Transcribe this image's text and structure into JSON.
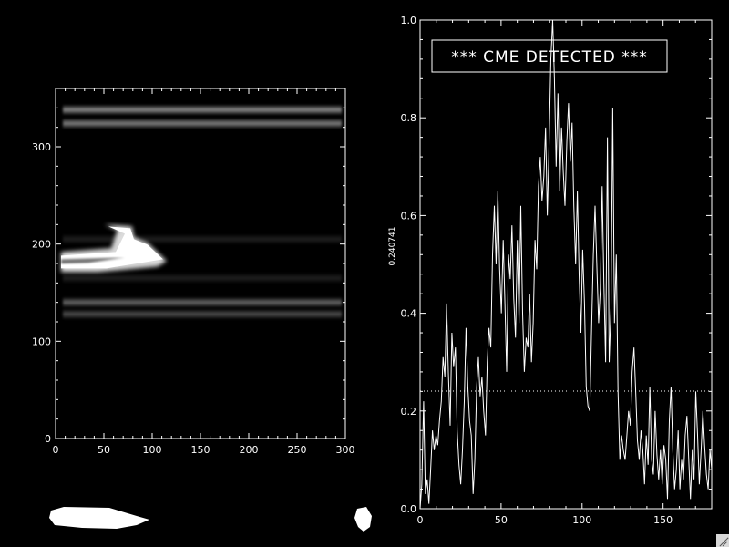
{
  "chart_data": [
    {
      "type": "heatmap",
      "xlim": [
        0,
        300
      ],
      "ylim": [
        0,
        360
      ],
      "x_ticks": [
        0,
        50,
        100,
        150,
        200,
        250,
        300
      ],
      "y_ticks": [
        0,
        100,
        200,
        300
      ],
      "x_tick_labels": [
        "0",
        "50",
        "100",
        "150",
        "200",
        "250",
        "300"
      ],
      "y_tick_labels": [
        "0",
        "100",
        "200",
        "300"
      ],
      "colormap": "grayscale",
      "bands": [
        {
          "y": 338,
          "intensity": 0.55
        },
        {
          "y": 324,
          "intensity": 0.5
        },
        {
          "y": 140,
          "intensity": 0.4
        },
        {
          "y": 128,
          "intensity": 0.3
        },
        {
          "y": 205,
          "intensity": 0.12
        },
        {
          "y": 165,
          "intensity": 0.12
        }
      ],
      "feature": {
        "x_range": [
          0,
          115
        ],
        "y_range": [
          175,
          220
        ],
        "intensity": 1.0
      }
    },
    {
      "type": "line",
      "xlim": [
        0,
        180
      ],
      "ylim": [
        0,
        1.0
      ],
      "x_ticks": [
        0,
        50,
        100,
        150
      ],
      "y_ticks": [
        0.0,
        0.2,
        0.4,
        0.6,
        0.8,
        1.0
      ],
      "x_tick_labels": [
        "0",
        "50",
        "100",
        "150"
      ],
      "y_tick_labels": [
        "0.0",
        "0.2",
        "0.4",
        "0.6",
        "0.8",
        "1.0"
      ],
      "ylabel": "0.240741",
      "threshold": 0.240741,
      "annotation": "*** CME DETECTED ***",
      "values": [
        0.0,
        0.05,
        0.22,
        0.03,
        0.06,
        0.01,
        0.08,
        0.16,
        0.12,
        0.15,
        0.13,
        0.18,
        0.22,
        0.31,
        0.27,
        0.42,
        0.28,
        0.17,
        0.36,
        0.29,
        0.33,
        0.16,
        0.09,
        0.05,
        0.12,
        0.22,
        0.37,
        0.25,
        0.18,
        0.15,
        0.03,
        0.1,
        0.25,
        0.31,
        0.23,
        0.27,
        0.2,
        0.15,
        0.3,
        0.37,
        0.33,
        0.52,
        0.62,
        0.5,
        0.65,
        0.49,
        0.4,
        0.55,
        0.42,
        0.28,
        0.52,
        0.47,
        0.58,
        0.43,
        0.35,
        0.55,
        0.38,
        0.62,
        0.4,
        0.28,
        0.35,
        0.33,
        0.44,
        0.3,
        0.38,
        0.55,
        0.49,
        0.66,
        0.72,
        0.63,
        0.68,
        0.78,
        0.6,
        0.75,
        0.92,
        1.0,
        0.88,
        0.7,
        0.85,
        0.65,
        0.78,
        0.69,
        0.62,
        0.75,
        0.83,
        0.71,
        0.79,
        0.62,
        0.5,
        0.65,
        0.48,
        0.36,
        0.53,
        0.42,
        0.25,
        0.21,
        0.2,
        0.36,
        0.52,
        0.62,
        0.5,
        0.38,
        0.45,
        0.66,
        0.46,
        0.3,
        0.76,
        0.3,
        0.41,
        0.82,
        0.38,
        0.52,
        0.24,
        0.1,
        0.15,
        0.12,
        0.1,
        0.15,
        0.2,
        0.17,
        0.28,
        0.33,
        0.24,
        0.14,
        0.1,
        0.16,
        0.12,
        0.05,
        0.15,
        0.09,
        0.25,
        0.1,
        0.07,
        0.2,
        0.11,
        0.06,
        0.12,
        0.05,
        0.13,
        0.1,
        0.02,
        0.18,
        0.25,
        0.12,
        0.04,
        0.08,
        0.16,
        0.04,
        0.1,
        0.06,
        0.15,
        0.19,
        0.1,
        0.02,
        0.12,
        0.06,
        0.24,
        0.15,
        0.05,
        0.12,
        0.2,
        0.13,
        0.07,
        0.04,
        0.12,
        0.08
      ]
    }
  ]
}
